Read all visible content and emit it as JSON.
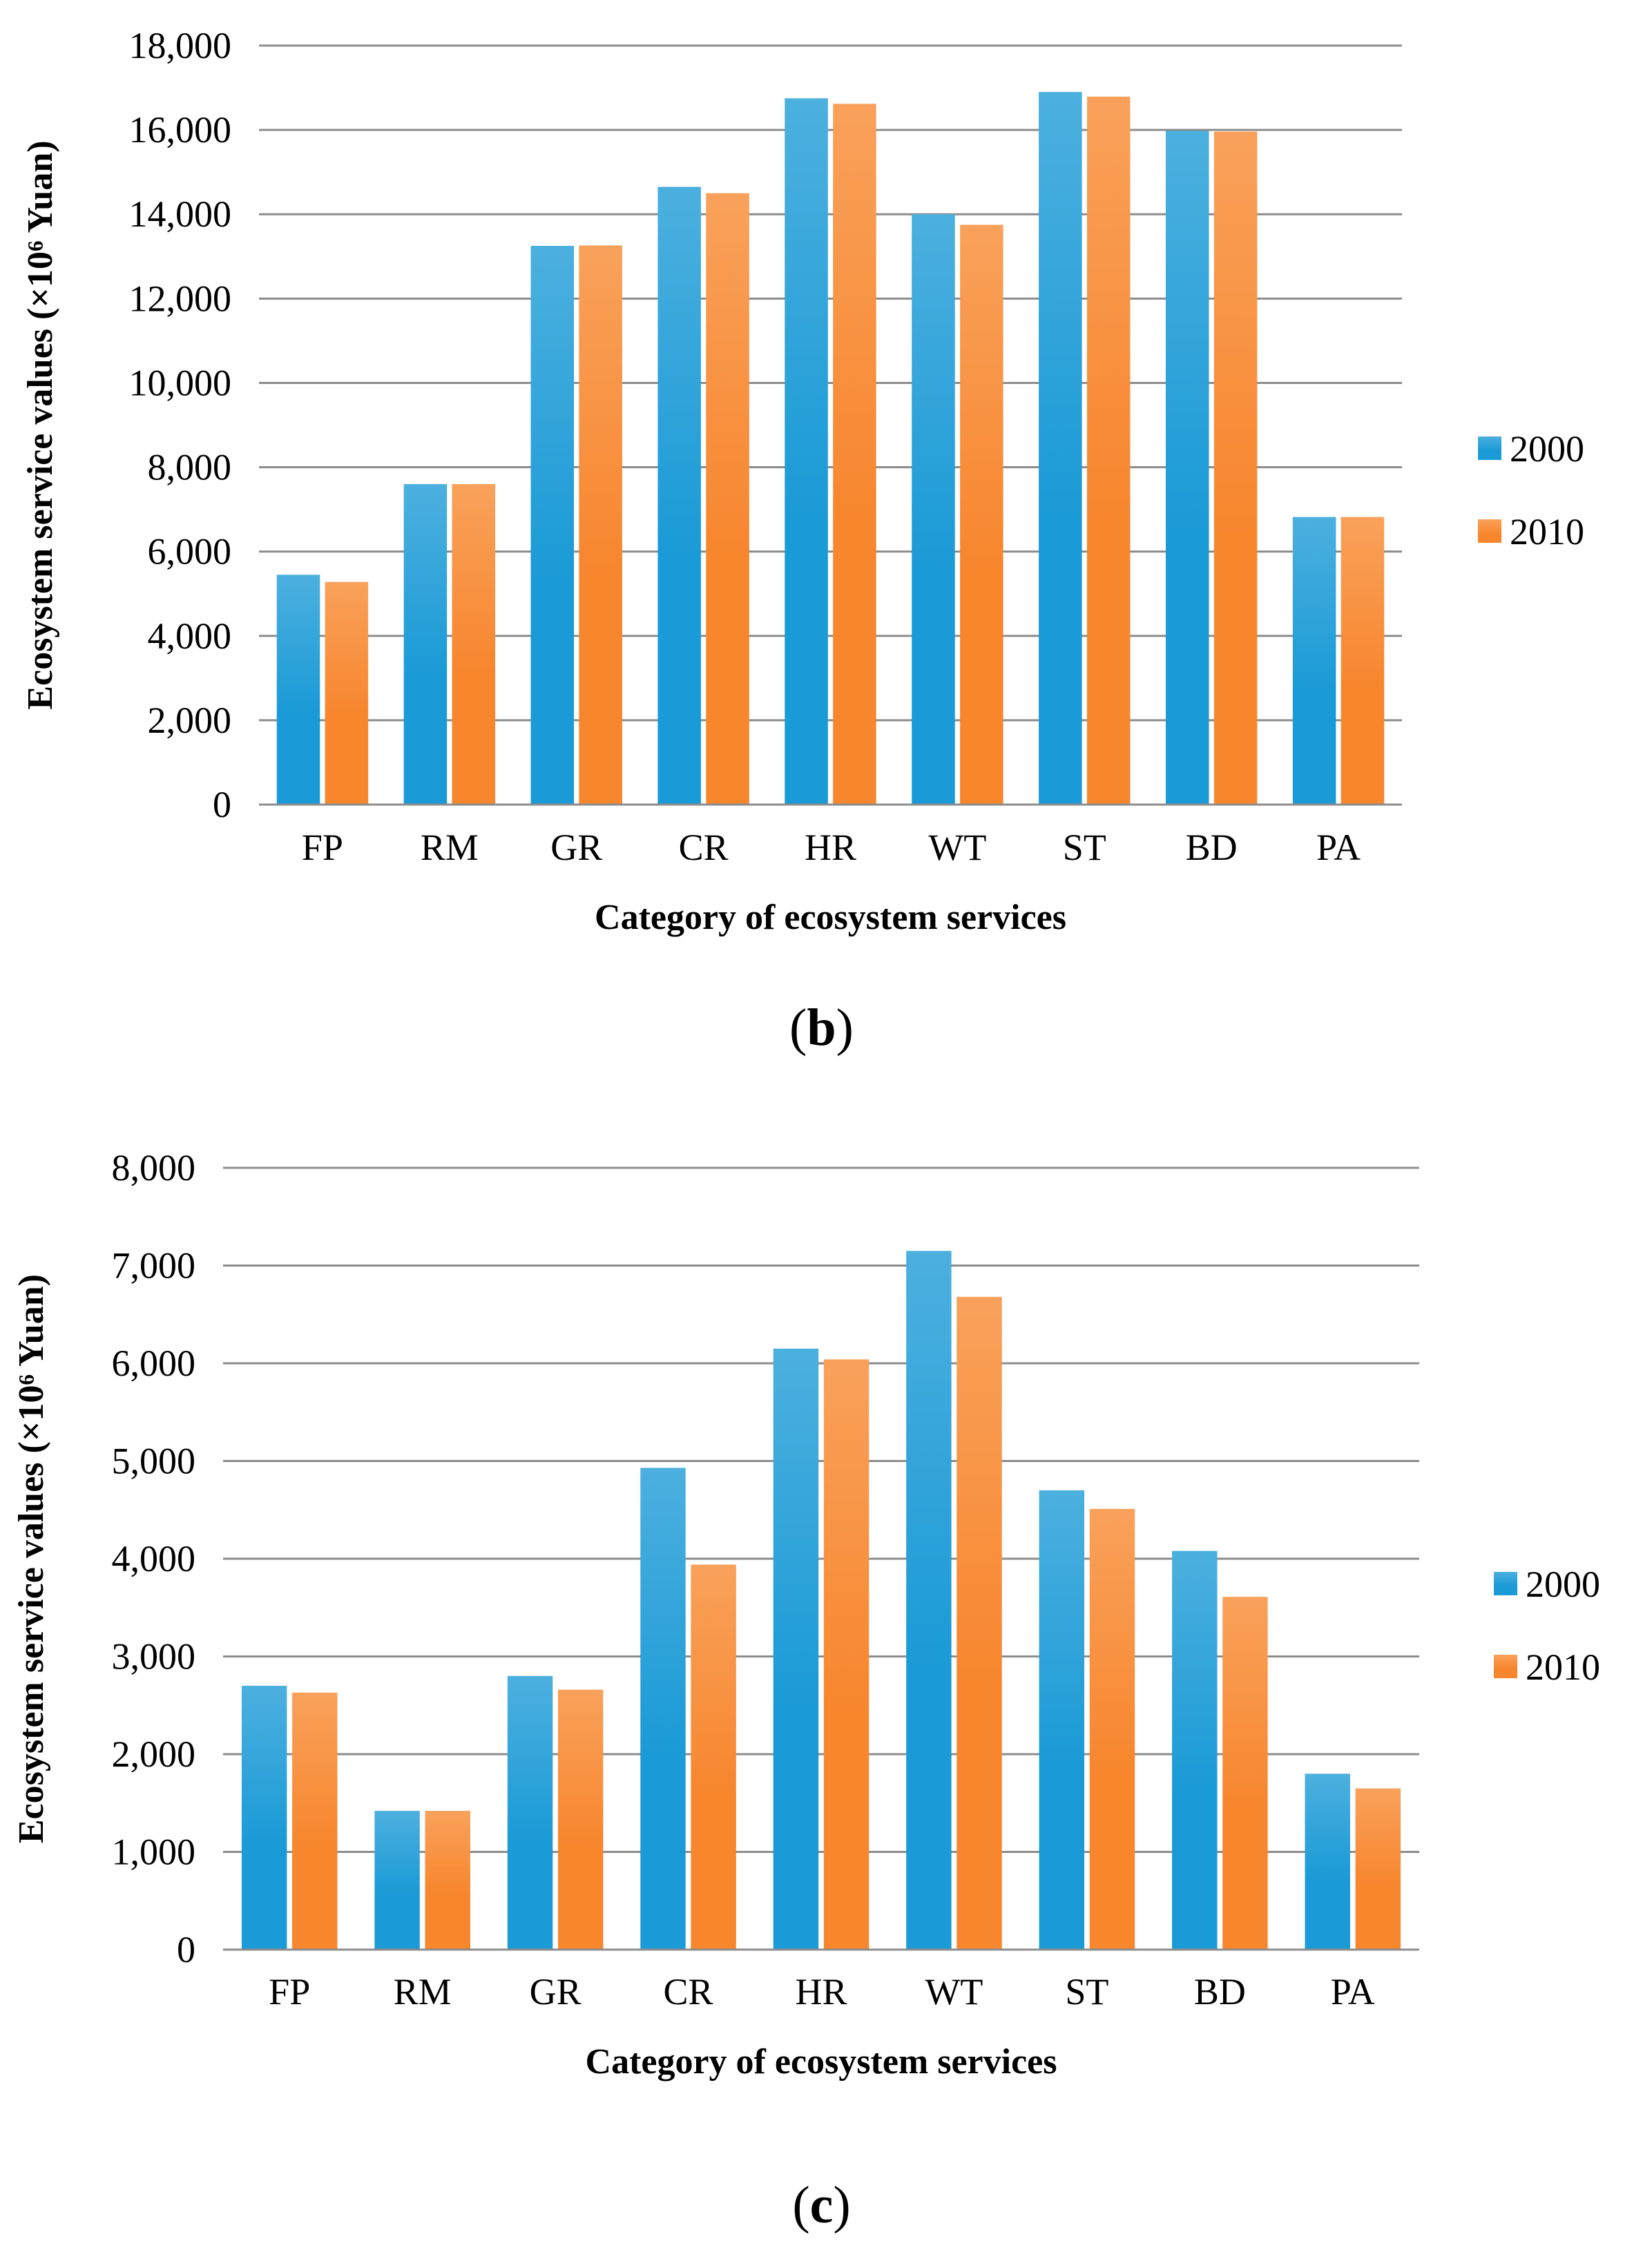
{
  "chart_data": [
    {
      "type": "bar",
      "panel_label": "b",
      "title": "",
      "categories": [
        "FP",
        "RM",
        "GR",
        "CR",
        "HR",
        "WT",
        "ST",
        "BD",
        "PA"
      ],
      "series": [
        {
          "name": "2000",
          "values": [
            5450,
            7600,
            13250,
            14650,
            16750,
            14000,
            16900,
            15980,
            6820
          ]
        },
        {
          "name": "2010",
          "values": [
            5280,
            7600,
            13260,
            14500,
            16620,
            13750,
            16790,
            15960,
            6820
          ]
        }
      ],
      "yticks": [
        0,
        2000,
        4000,
        6000,
        8000,
        10000,
        12000,
        14000,
        16000,
        18000
      ],
      "ytick_labels": [
        "0",
        "2,000",
        "4,000",
        "6,000",
        "8,000",
        "10,000",
        "12,000",
        "14,000",
        "16,000",
        "18,000"
      ],
      "ylim": [
        0,
        18000
      ],
      "xlabel": "Category of ecosystem services",
      "ylabel": "Ecosystem service values (×10⁶ Yuan)",
      "grid": true,
      "legend_position": "right",
      "colors": {
        "2000": "#1a9ad6",
        "2010": "#f7862d"
      }
    },
    {
      "type": "bar",
      "panel_label": "c",
      "title": "",
      "categories": [
        "FP",
        "RM",
        "GR",
        "CR",
        "HR",
        "WT",
        "ST",
        "BD",
        "PA"
      ],
      "series": [
        {
          "name": "2000",
          "values": [
            2700,
            1420,
            2800,
            4930,
            6150,
            7150,
            4700,
            4080,
            1800
          ]
        },
        {
          "name": "2010",
          "values": [
            2630,
            1420,
            2660,
            3940,
            6040,
            6680,
            4510,
            3610,
            1650
          ]
        }
      ],
      "yticks": [
        0,
        1000,
        2000,
        3000,
        4000,
        5000,
        6000,
        7000,
        8000
      ],
      "ytick_labels": [
        "0",
        "1,000",
        "2,000",
        "3,000",
        "4,000",
        "5,000",
        "6,000",
        "7,000",
        "8,000"
      ],
      "ylim": [
        0,
        8000
      ],
      "xlabel": "Category of ecosystem services",
      "ylabel": "Ecosystem service values (×10⁶ Yuan)",
      "grid": true,
      "legend_position": "right",
      "colors": {
        "2000": "#1a9ad6",
        "2010": "#f7862d"
      }
    }
  ],
  "labels": {
    "panel_b": "b",
    "panel_c": "c"
  }
}
